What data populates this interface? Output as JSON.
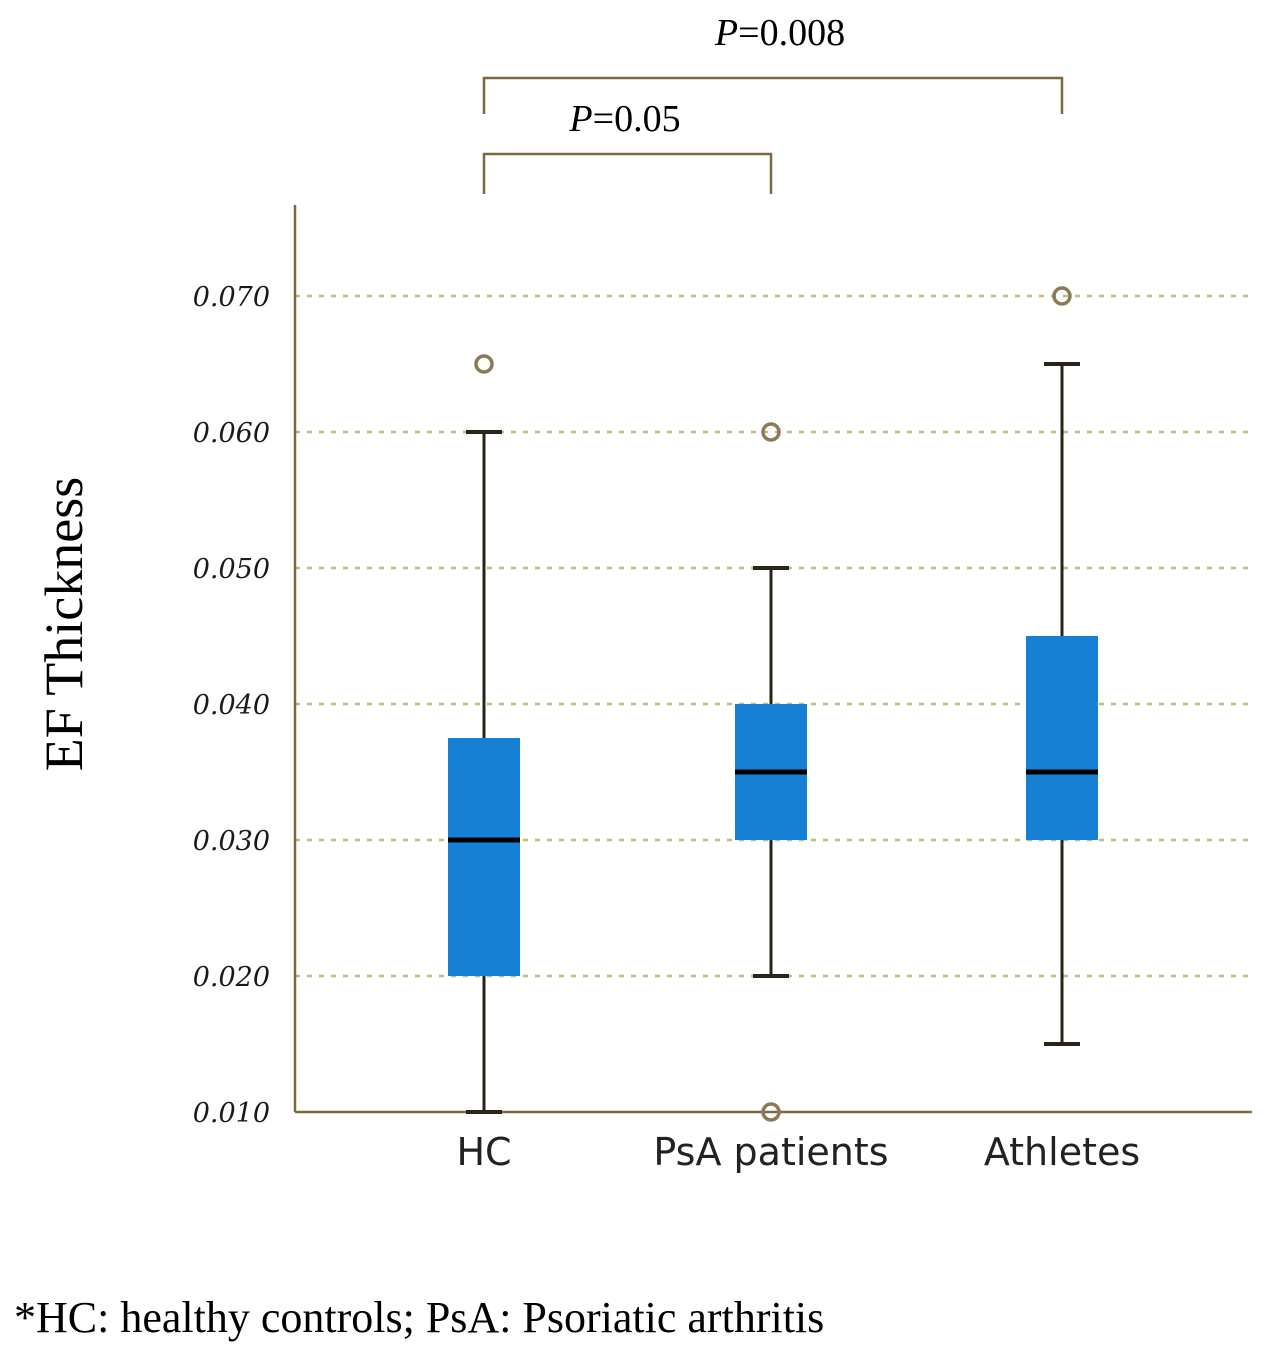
{
  "chart_data": {
    "type": "boxplot",
    "ylabel": "EF Thickness",
    "xlabel": "",
    "ylim": [
      0.01,
      0.077
    ],
    "yticks": [
      0.01,
      0.02,
      0.03,
      0.04,
      0.05,
      0.06,
      0.07
    ],
    "ytick_labels": [
      "0.010",
      "0.020",
      "0.030",
      "0.040",
      "0.050",
      "0.060",
      "0.070"
    ],
    "grid": "horizontal dashed",
    "categories": [
      "HC",
      "PsA patients",
      "Athletes"
    ],
    "boxes": [
      {
        "name": "HC",
        "whisker_low": 0.01,
        "q1": 0.02,
        "median": 0.03,
        "q3": 0.0375,
        "whisker_high": 0.06,
        "outliers": [
          0.065
        ]
      },
      {
        "name": "PsA patients",
        "whisker_low": 0.02,
        "q1": 0.03,
        "median": 0.035,
        "q3": 0.04,
        "whisker_high": 0.05,
        "outliers": [
          0.06,
          0.01
        ]
      },
      {
        "name": "Athletes",
        "whisker_low": 0.015,
        "q1": 0.03,
        "median": 0.035,
        "q3": 0.045,
        "whisker_high": 0.065,
        "outliers": [
          0.07
        ]
      }
    ],
    "comparisons": [
      {
        "from": "HC",
        "to": "PsA patients",
        "p_symbol": "P",
        "p_value": "=0.05"
      },
      {
        "from": "HC",
        "to": "Athletes",
        "p_symbol": "P",
        "p_value": "=0.008"
      }
    ],
    "colors": {
      "box": "#1580d4",
      "axis": "#7a6a40",
      "grid": "#b6c27a",
      "outlier": "#8a7a55",
      "whisker": "#2a2418",
      "median": "#000000"
    }
  },
  "footnote": "*HC: healthy controls; PsA: Psoriatic arthritis"
}
